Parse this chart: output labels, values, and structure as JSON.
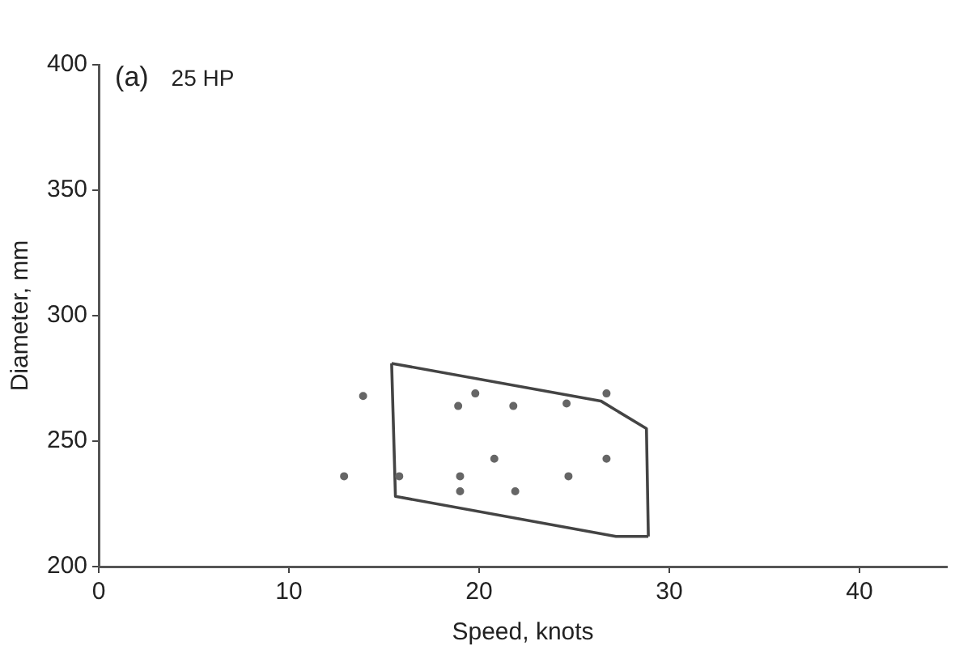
{
  "chart_data": {
    "type": "scatter",
    "xlabel": "Speed, knots",
    "ylabel": "Diameter, mm",
    "annotations": [
      "(a)",
      "25 HP"
    ],
    "xlim": [
      0,
      44.6
    ],
    "xticks": [
      0,
      10,
      20,
      30,
      40
    ],
    "ylim": [
      200,
      400
    ],
    "yticks": [
      200,
      250,
      300,
      350,
      400
    ],
    "grid": false,
    "legend": false,
    "series": [
      {
        "type": "scatter",
        "color": "#666666",
        "marker": "circle",
        "x": [
          13.9,
          12.9,
          15.8,
          19.8,
          18.9,
          21.8,
          24.6,
          26.7,
          20.8,
          26.7,
          19,
          24.7,
          19,
          21.9
        ],
        "values": [
          268,
          236,
          236,
          269,
          264,
          264,
          265,
          269,
          243,
          243,
          236,
          236,
          230,
          230
        ]
      },
      {
        "type": "line",
        "color": "#444444",
        "marker": "none",
        "line_style": "solid",
        "x": [
          15.4,
          26.4,
          28.8,
          28.9
        ],
        "values": [
          281,
          266,
          255,
          212
        ]
      },
      {
        "type": "line",
        "color": "#444444",
        "marker": "none",
        "line_style": "solid",
        "x": [
          15.4,
          15.6,
          27.2,
          28.9
        ],
        "values": [
          281,
          228,
          212,
          212
        ]
      }
    ]
  }
}
